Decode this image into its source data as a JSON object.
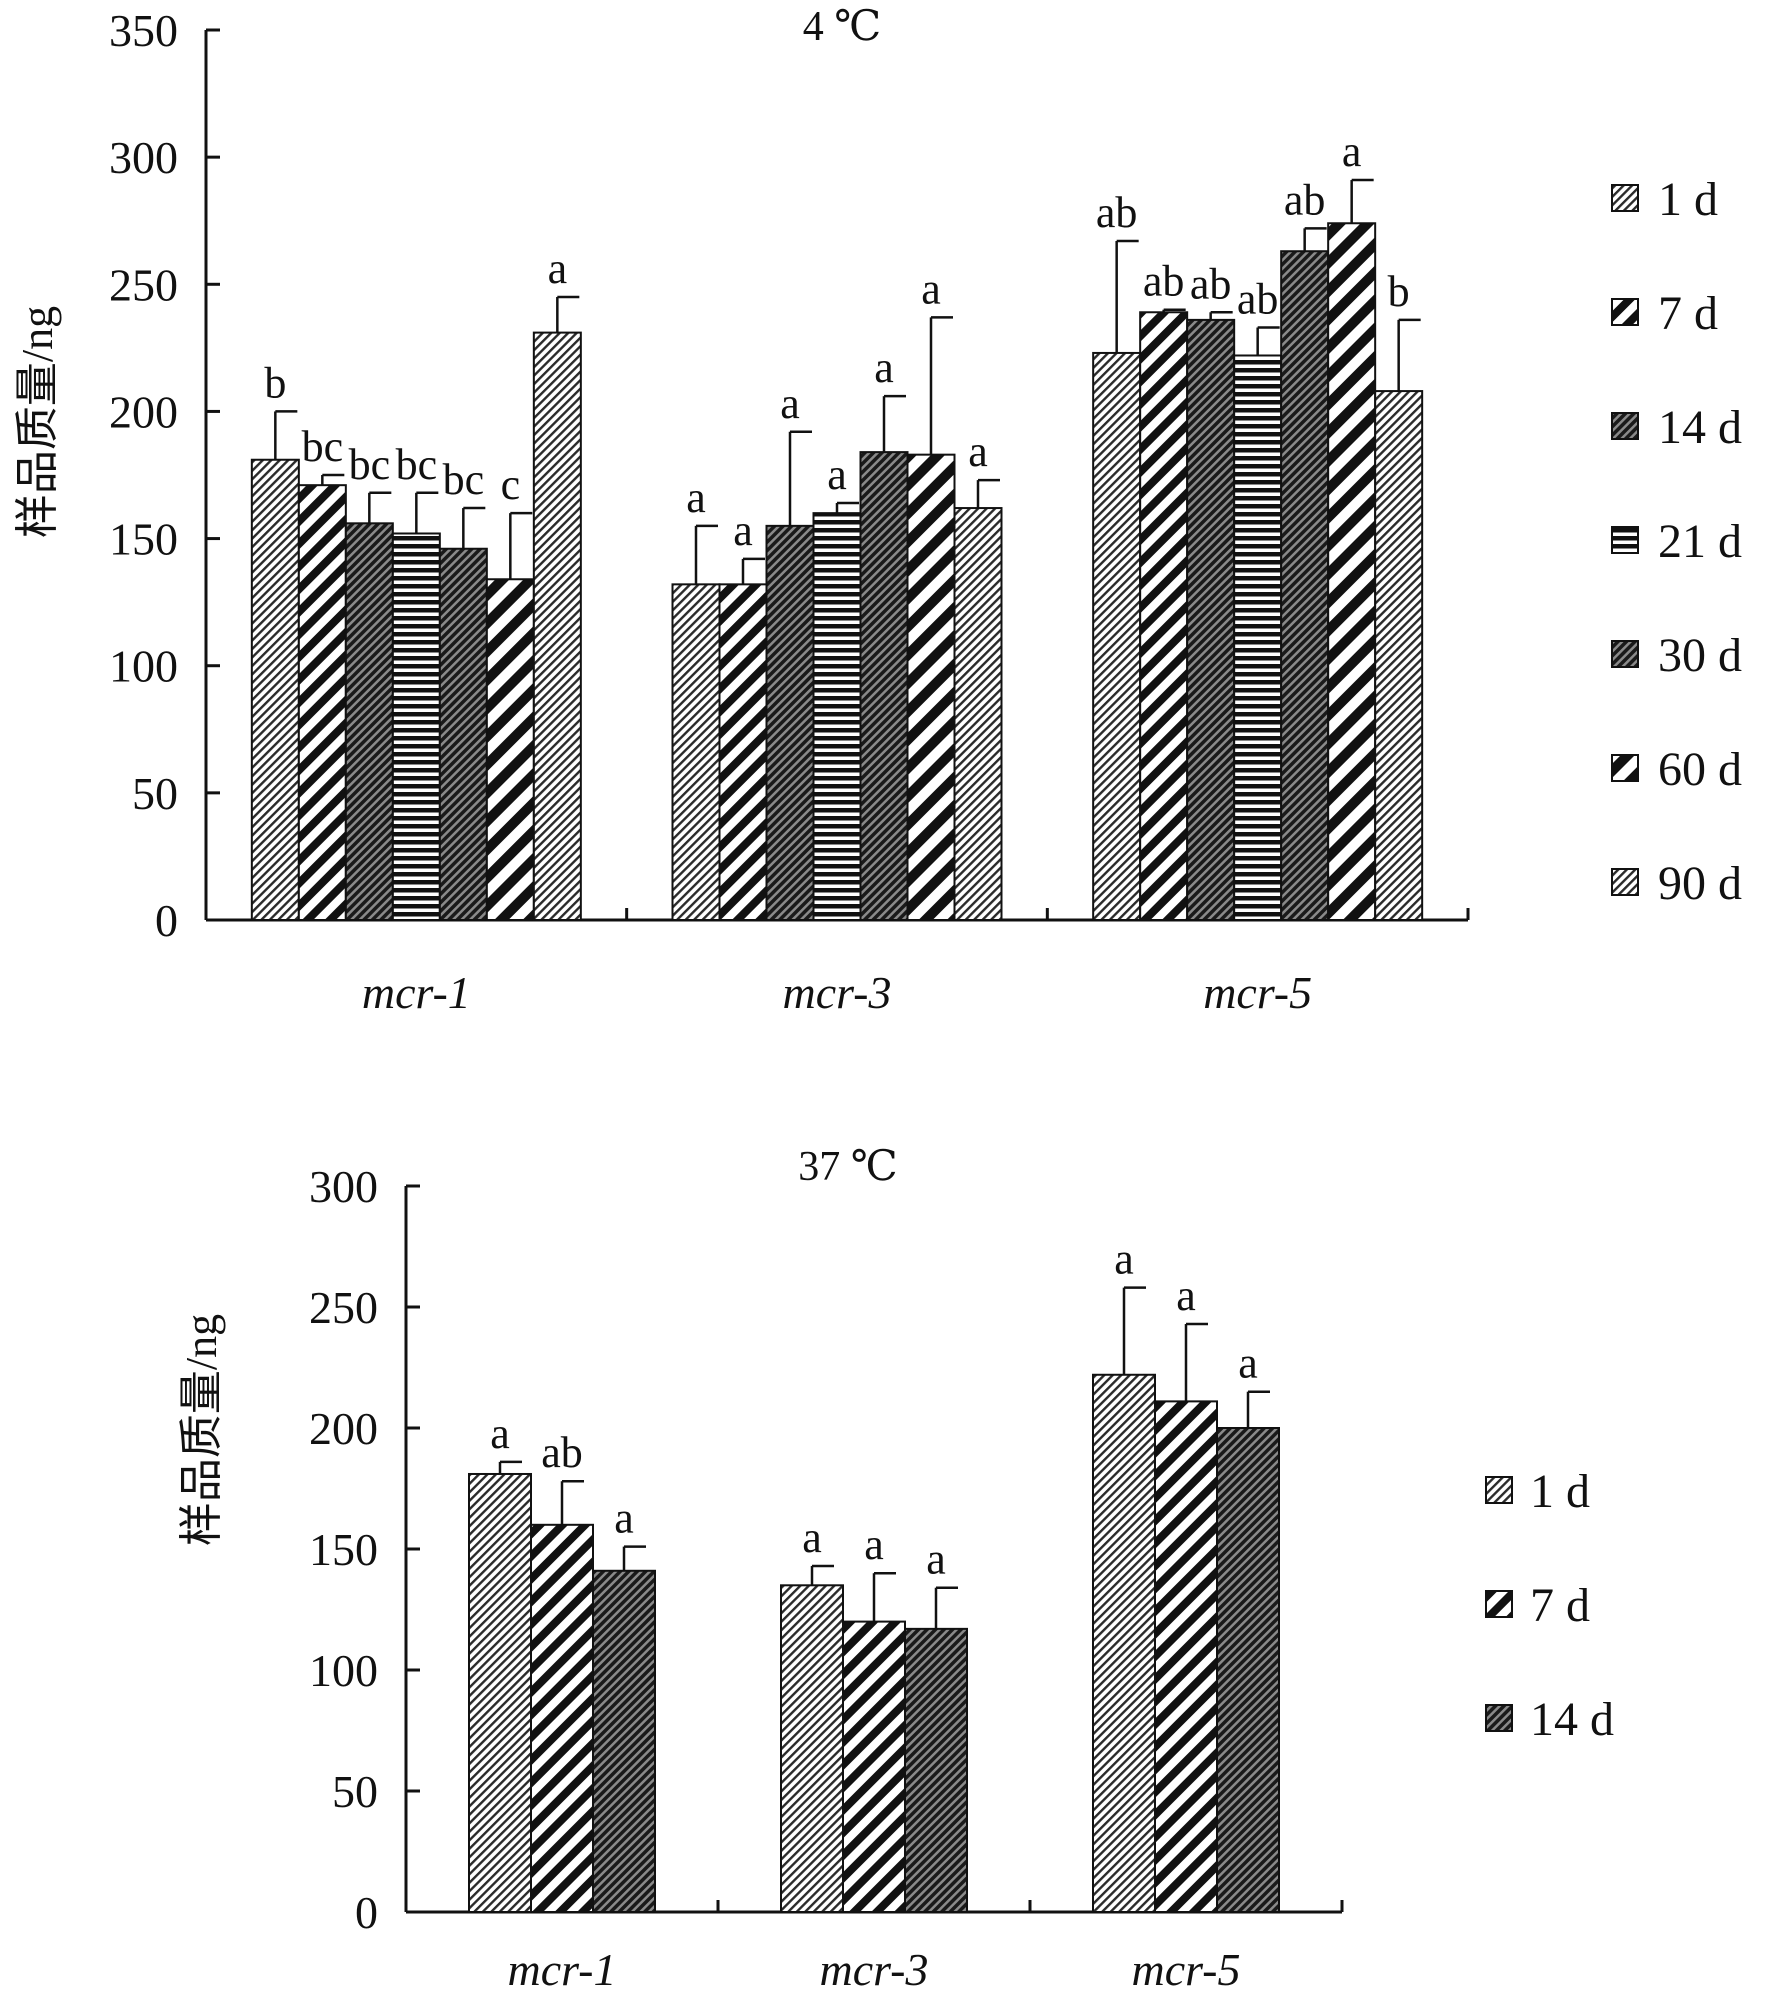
{
  "chart_data": [
    {
      "type": "bar",
      "title": "4 ℃",
      "ylabel": "样品质量/ng",
      "xlabel": "",
      "ylim": [
        0,
        350
      ],
      "yticks": [
        0,
        50,
        100,
        150,
        200,
        250,
        300,
        350
      ],
      "categories": [
        "mcr-1",
        "mcr-3",
        "mcr-5"
      ],
      "legend_position": "right",
      "grid": false,
      "series": [
        {
          "name": "1 d",
          "values": [
            181,
            132,
            223
          ],
          "errors": [
            19,
            23,
            44
          ],
          "labels": [
            "b",
            "a",
            "ab"
          ],
          "pattern": "fine-diag"
        },
        {
          "name": "7 d",
          "values": [
            171,
            132,
            239
          ],
          "errors": [
            4,
            10,
            1
          ],
          "labels": [
            "bc",
            "a",
            "ab"
          ],
          "pattern": "wide-diag"
        },
        {
          "name": "14 d",
          "values": [
            156,
            155,
            236
          ],
          "errors": [
            12,
            37,
            3
          ],
          "labels": [
            "bc",
            "a",
            "ab"
          ],
          "pattern": "dense-diag"
        },
        {
          "name": "21 d",
          "values": [
            152,
            160,
            222
          ],
          "errors": [
            16,
            4,
            11
          ],
          "labels": [
            "bc",
            "a",
            "ab"
          ],
          "pattern": "horizontal"
        },
        {
          "name": "30 d",
          "values": [
            146,
            184,
            263
          ],
          "errors": [
            16,
            22,
            9
          ],
          "labels": [
            "bc",
            "a",
            "ab"
          ],
          "pattern": "dense-diag"
        },
        {
          "name": "60 d",
          "values": [
            134,
            183,
            274
          ],
          "errors": [
            26,
            54,
            17
          ],
          "labels": [
            "c",
            "a",
            "a"
          ],
          "pattern": "wide-diag-alt"
        },
        {
          "name": "90 d",
          "values": [
            231,
            162,
            208
          ],
          "errors": [
            14,
            11,
            28
          ],
          "labels": [
            "a",
            "a",
            "b"
          ],
          "pattern": "fine-diag"
        }
      ]
    },
    {
      "type": "bar",
      "title": "37 ℃",
      "ylabel": "样品质量/ng",
      "xlabel": "",
      "ylim": [
        0,
        300
      ],
      "yticks": [
        0,
        50,
        100,
        150,
        200,
        250,
        300
      ],
      "categories": [
        "mcr-1",
        "mcr-3",
        "mcr-5"
      ],
      "legend_position": "right",
      "grid": false,
      "series": [
        {
          "name": "1 d",
          "values": [
            181,
            135,
            222
          ],
          "errors": [
            5,
            8,
            36
          ],
          "labels": [
            "a",
            "a",
            "a"
          ],
          "pattern": "fine-diag"
        },
        {
          "name": "7 d",
          "values": [
            160,
            120,
            211
          ],
          "errors": [
            18,
            20,
            32
          ],
          "labels": [
            "ab",
            "a",
            "a"
          ],
          "pattern": "wide-diag"
        },
        {
          "name": "14 d",
          "values": [
            141,
            117,
            200
          ],
          "errors": [
            10,
            17,
            15
          ],
          "labels": [
            "a",
            "a",
            "a"
          ],
          "pattern": "dense-diag"
        }
      ]
    }
  ]
}
